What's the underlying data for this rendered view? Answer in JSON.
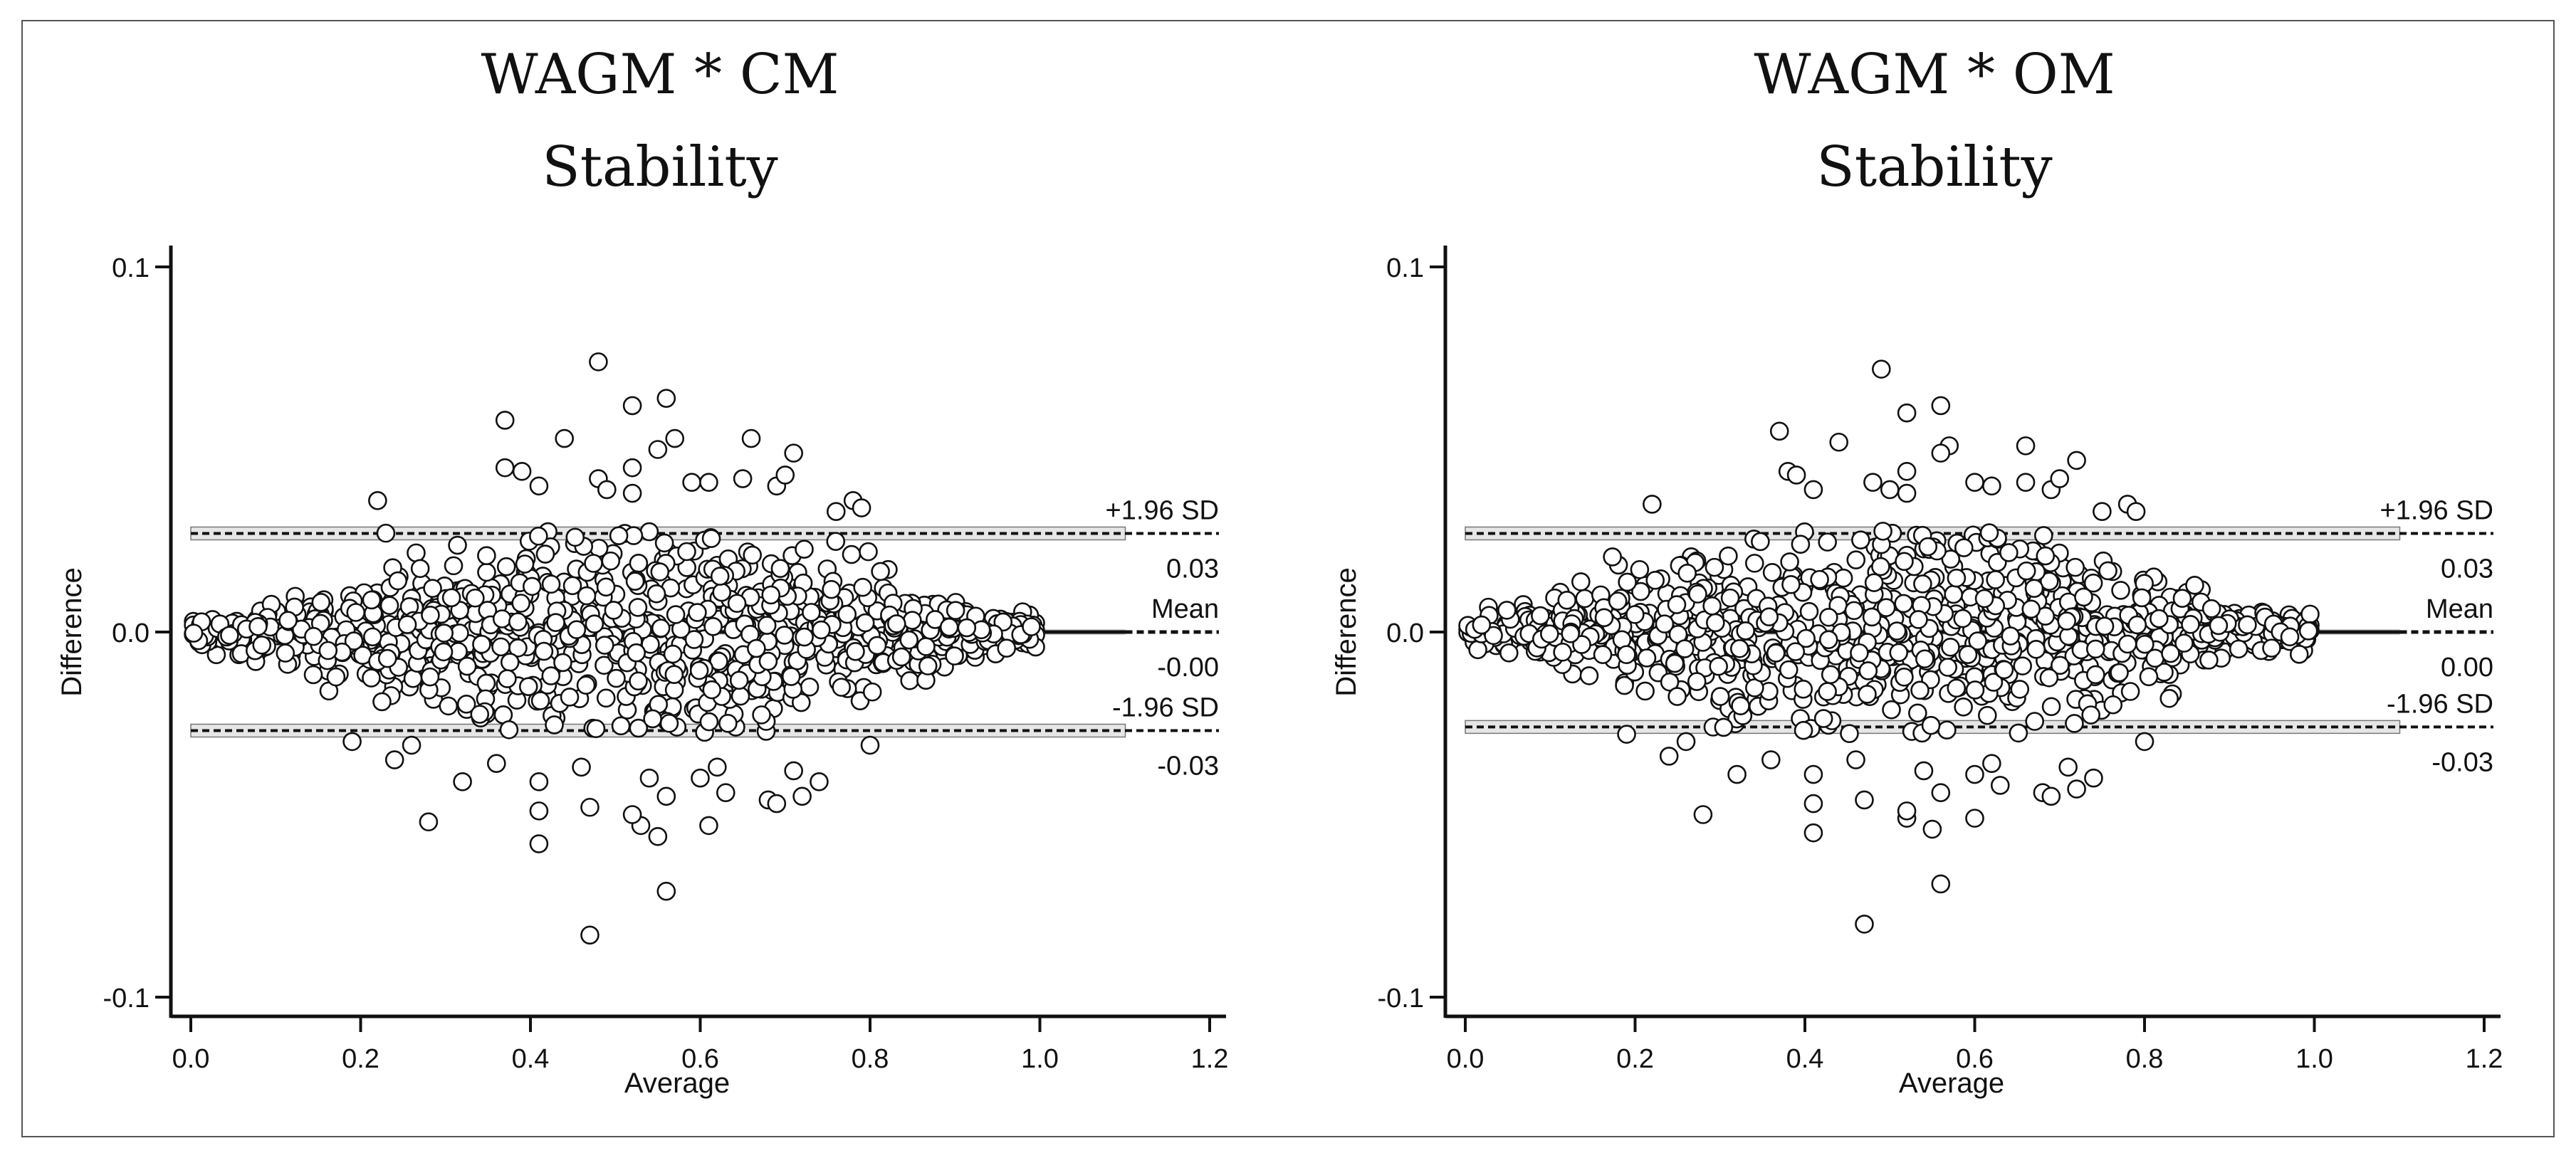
{
  "chart_data": [
    {
      "type": "scatter",
      "title": "WAGM * CM",
      "subtitle": "Stability",
      "xlabel": "Average",
      "ylabel": "Difference",
      "xlim": [
        0.0,
        1.2
      ],
      "ylim": [
        -0.1,
        0.1
      ],
      "x_ticks": [
        "0.0",
        "0.2",
        "0.4",
        "0.6",
        "0.8",
        "1.0",
        "1.2"
      ],
      "y_ticks": [
        "0.1",
        "0.0",
        "-0.1"
      ],
      "grid": false,
      "reference_lines": {
        "upper": {
          "label": "+1.96 SD",
          "value": 0.027,
          "value_label": "0.03"
        },
        "mean": {
          "label": "Mean",
          "value": 0.0,
          "value_label": "-0.00"
        },
        "lower": {
          "label": "-1.96 SD",
          "value": -0.027,
          "value_label": "-0.03"
        }
      },
      "outliers": [
        [
          0.48,
          0.074
        ],
        [
          0.37,
          0.058
        ],
        [
          0.56,
          0.064
        ],
        [
          0.52,
          0.062
        ],
        [
          0.57,
          0.053
        ],
        [
          0.66,
          0.053
        ],
        [
          0.44,
          0.053
        ],
        [
          0.71,
          0.049
        ],
        [
          0.37,
          0.045
        ],
        [
          0.52,
          0.045
        ],
        [
          0.39,
          0.044
        ],
        [
          0.55,
          0.05
        ],
        [
          0.48,
          0.042
        ],
        [
          0.59,
          0.041
        ],
        [
          0.61,
          0.041
        ],
        [
          0.65,
          0.042
        ],
        [
          0.69,
          0.04
        ],
        [
          0.41,
          0.04
        ],
        [
          0.78,
          0.036
        ],
        [
          0.22,
          0.036
        ],
        [
          0.7,
          0.043
        ],
        [
          0.52,
          0.038
        ],
        [
          0.76,
          0.033
        ],
        [
          0.49,
          0.039
        ],
        [
          0.79,
          0.034
        ],
        [
          0.47,
          -0.083
        ],
        [
          0.56,
          -0.071
        ],
        [
          0.41,
          -0.058
        ],
        [
          0.55,
          -0.056
        ],
        [
          0.53,
          -0.053
        ],
        [
          0.61,
          -0.053
        ],
        [
          0.28,
          -0.052
        ],
        [
          0.52,
          -0.05
        ],
        [
          0.41,
          -0.049
        ],
        [
          0.47,
          -0.048
        ],
        [
          0.68,
          -0.046
        ],
        [
          0.69,
          -0.047
        ],
        [
          0.72,
          -0.045
        ],
        [
          0.56,
          -0.045
        ],
        [
          0.63,
          -0.044
        ],
        [
          0.41,
          -0.041
        ],
        [
          0.74,
          -0.041
        ],
        [
          0.54,
          -0.04
        ],
        [
          0.32,
          -0.041
        ],
        [
          0.46,
          -0.037
        ],
        [
          0.36,
          -0.036
        ],
        [
          0.6,
          -0.04
        ],
        [
          0.24,
          -0.035
        ],
        [
          0.71,
          -0.038
        ],
        [
          0.8,
          -0.031
        ],
        [
          0.26,
          -0.031
        ],
        [
          0.19,
          -0.03
        ],
        [
          0.62,
          -0.037
        ]
      ]
    },
    {
      "type": "scatter",
      "title": "WAGM * OM",
      "subtitle": "Stability",
      "xlabel": "Average",
      "ylabel": "Difference",
      "xlim": [
        0.0,
        1.2
      ],
      "ylim": [
        -0.1,
        0.1
      ],
      "x_ticks": [
        "0.0",
        "0.2",
        "0.4",
        "0.6",
        "0.8",
        "1.0",
        "1.2"
      ],
      "y_ticks": [
        "0.1",
        "0.0",
        "-0.1"
      ],
      "grid": false,
      "reference_lines": {
        "upper": {
          "label": "+1.96 SD",
          "value": 0.027,
          "value_label": "0.03"
        },
        "mean": {
          "label": "Mean",
          "value": 0.0,
          "value_label": "0.00"
        },
        "lower": {
          "label": "-1.96 SD",
          "value": -0.026,
          "value_label": "-0.03"
        }
      },
      "outliers": [
        [
          0.49,
          0.072
        ],
        [
          0.56,
          0.062
        ],
        [
          0.52,
          0.06
        ],
        [
          0.37,
          0.055
        ],
        [
          0.44,
          0.052
        ],
        [
          0.57,
          0.051
        ],
        [
          0.56,
          0.049
        ],
        [
          0.66,
          0.051
        ],
        [
          0.72,
          0.047
        ],
        [
          0.38,
          0.044
        ],
        [
          0.39,
          0.043
        ],
        [
          0.52,
          0.044
        ],
        [
          0.41,
          0.039
        ],
        [
          0.48,
          0.041
        ],
        [
          0.6,
          0.041
        ],
        [
          0.62,
          0.04
        ],
        [
          0.66,
          0.041
        ],
        [
          0.69,
          0.039
        ],
        [
          0.7,
          0.042
        ],
        [
          0.52,
          0.038
        ],
        [
          0.78,
          0.035
        ],
        [
          0.22,
          0.035
        ],
        [
          0.75,
          0.033
        ],
        [
          0.79,
          0.033
        ],
        [
          0.5,
          0.039
        ],
        [
          0.47,
          -0.08
        ],
        [
          0.56,
          -0.069
        ],
        [
          0.41,
          -0.055
        ],
        [
          0.55,
          -0.054
        ],
        [
          0.52,
          -0.051
        ],
        [
          0.6,
          -0.051
        ],
        [
          0.28,
          -0.05
        ],
        [
          0.52,
          -0.049
        ],
        [
          0.41,
          -0.047
        ],
        [
          0.47,
          -0.046
        ],
        [
          0.68,
          -0.044
        ],
        [
          0.69,
          -0.045
        ],
        [
          0.72,
          -0.043
        ],
        [
          0.56,
          -0.044
        ],
        [
          0.63,
          -0.042
        ],
        [
          0.41,
          -0.039
        ],
        [
          0.74,
          -0.04
        ],
        [
          0.54,
          -0.038
        ],
        [
          0.32,
          -0.039
        ],
        [
          0.46,
          -0.035
        ],
        [
          0.36,
          -0.035
        ],
        [
          0.6,
          -0.039
        ],
        [
          0.24,
          -0.034
        ],
        [
          0.71,
          -0.037
        ],
        [
          0.8,
          -0.03
        ],
        [
          0.26,
          -0.03
        ],
        [
          0.19,
          -0.028
        ],
        [
          0.62,
          -0.036
        ]
      ]
    }
  ]
}
